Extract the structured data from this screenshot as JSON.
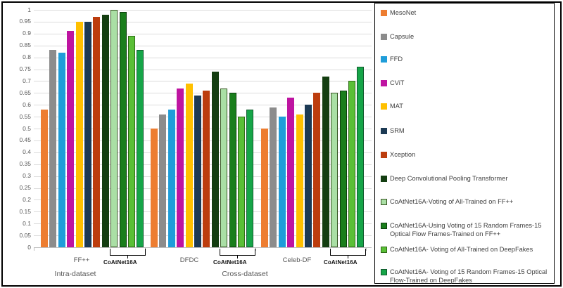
{
  "chart_data": {
    "type": "bar",
    "title": "",
    "xlabel": "",
    "ylabel": "",
    "ylim": [
      0,
      1
    ],
    "grid": true,
    "legend_position": "right",
    "ytick_labels": [
      "0",
      "0.05",
      "0.1",
      "0.15",
      "0.2",
      "0.25",
      "0.3",
      "0.35",
      "0.4",
      "0.45",
      "0.5",
      "0.55",
      "0.6",
      "0.65",
      "0.7",
      "0.75",
      "0.8",
      "0.85",
      "0.9",
      "0.95",
      "1"
    ],
    "categories": [
      "FF++",
      "DFDC",
      "Celeb-DF"
    ],
    "section_labels": [
      "Intra-dataset",
      "Cross-dataset"
    ],
    "bracket_annotation": "CoAtNet16A",
    "series": [
      {
        "name": "MesoNet",
        "color": "#ED7D31",
        "values": [
          0.58,
          0.5,
          0.5
        ]
      },
      {
        "name": "Capsule",
        "color": "#8C8C8C",
        "values": [
          0.83,
          0.56,
          0.59
        ]
      },
      {
        "name": "FFD",
        "color": "#1F9DD9",
        "values": [
          0.82,
          0.58,
          0.55
        ]
      },
      {
        "name": "CViT",
        "color": "#BE14A1",
        "values": [
          0.91,
          0.67,
          0.63
        ]
      },
      {
        "name": "MAT",
        "color": "#FFC000",
        "values": [
          0.95,
          0.69,
          0.56
        ]
      },
      {
        "name": "SRM",
        "color": "#1C3A54",
        "values": [
          0.95,
          0.64,
          0.6
        ]
      },
      {
        "name": "Xception",
        "color": "#BC3D0E",
        "values": [
          0.97,
          0.66,
          0.65
        ]
      },
      {
        "name": "Deep Convolutional Pooling Transformer",
        "color": "#143E11",
        "values": [
          0.98,
          0.74,
          0.72
        ]
      },
      {
        "name": "CoAtNet16A-Voting of All-Trained on FF++",
        "color": "#AADFA5",
        "border_color": "#375623",
        "values": [
          1.0,
          0.67,
          0.65
        ]
      },
      {
        "name": "CoAtNet16A-Using Voting of 15 Random Frames-15 Optical Flow Frames-Trained on FF++",
        "color": "#1A7E1C",
        "border_color": "#0E3E0E",
        "values": [
          0.99,
          0.65,
          0.66
        ]
      },
      {
        "name": "CoAtNet16A- Voting of All-Trained on DeepFakes",
        "color": "#5ABF36",
        "border_color": "#2E6B17",
        "values": [
          0.89,
          0.55,
          0.7
        ]
      },
      {
        "name": "CoAtNet16A- Voting of 15 Random Frames-15 Optical Flow-Trained on DeepFakes",
        "color": "#16A548",
        "border_color": "#115A2E",
        "values": [
          0.83,
          0.58,
          0.76
        ]
      }
    ]
  },
  "colors": {
    "grid": "#DCDCDC",
    "axis": "#BFBFBF",
    "tick_text": "#595959",
    "legend_text": "#3F3F3F",
    "border": "#000000"
  }
}
